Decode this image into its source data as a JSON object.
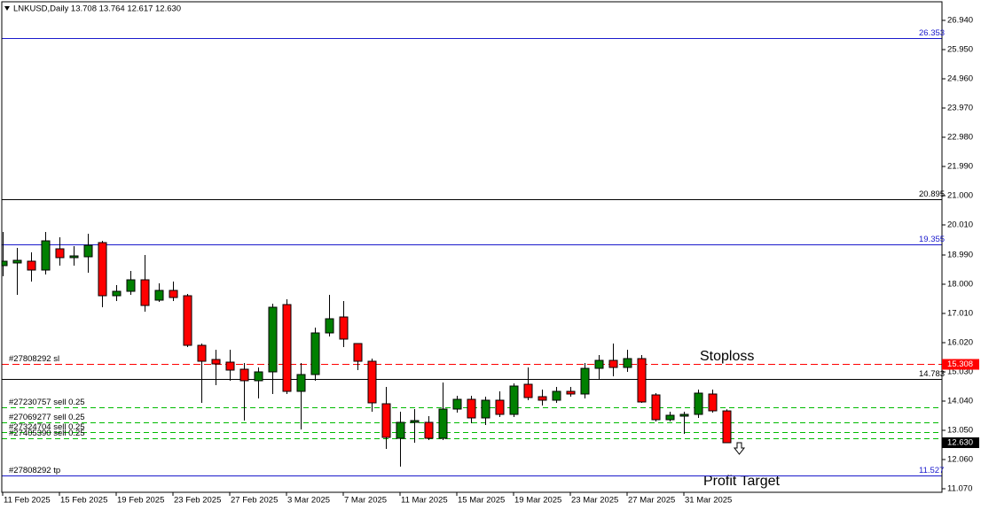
{
  "chart_data": {
    "type": "candlestick",
    "header": "LNKUSD,Daily  13.708 13.764 12.617 12.630",
    "categories": [
      "11 Feb 2025",
      null,
      null,
      null,
      "15 Feb 2025",
      null,
      null,
      null,
      "19 Feb 2025",
      null,
      null,
      null,
      "23 Feb 2025",
      null,
      null,
      null,
      "27 Feb 2025",
      null,
      null,
      null,
      "3 Mar 2025",
      null,
      null,
      null,
      "7 Mar 2025",
      null,
      null,
      null,
      "11 Mar 2025",
      null,
      null,
      null,
      "15 Mar 2025",
      null,
      null,
      null,
      "19 Mar 2025",
      null,
      null,
      null,
      "23 Mar 2025",
      null,
      null,
      null,
      "27 Mar 2025",
      null,
      null,
      null,
      "31 Mar 2025",
      null,
      null,
      null
    ],
    "open": [
      18.63,
      18.72,
      18.78,
      18.48,
      19.2,
      18.9,
      18.93,
      19.41,
      17.61,
      17.76,
      18.15,
      17.46,
      17.79,
      17.61,
      15.93,
      15.45,
      15.36,
      15.12,
      14.73,
      15.03,
      17.31,
      14.37,
      14.94,
      16.35,
      16.89,
      15.99,
      15.39,
      13.95,
      12.78,
      13.32,
      13.32,
      12.78,
      13.77,
      14.1,
      13.47,
      14.07,
      13.59,
      14.61,
      14.19,
      14.07,
      14.37,
      14.28,
      15.15,
      15.42,
      15.18,
      15.48,
      14.25,
      13.41,
      13.53,
      13.59,
      14.28,
      13.708
    ],
    "high": [
      19.77,
      19.23,
      19.08,
      19.77,
      19.59,
      19.29,
      19.71,
      19.47,
      17.97,
      18.45,
      18.99,
      18.03,
      18.09,
      17.67,
      15.99,
      15.78,
      15.78,
      15.33,
      15.18,
      17.34,
      17.49,
      15.33,
      16.53,
      17.64,
      17.43,
      15.99,
      15.48,
      14.52,
      13.68,
      13.77,
      13.53,
      14.67,
      14.22,
      14.22,
      14.19,
      14.37,
      14.64,
      15.18,
      14.43,
      14.52,
      14.52,
      15.33,
      15.6,
      15.99,
      15.78,
      15.6,
      14.31,
      13.68,
      13.68,
      14.43,
      14.43,
      13.764
    ],
    "low": [
      18.27,
      17.64,
      18.09,
      18.33,
      18.63,
      18.63,
      18.39,
      17.22,
      17.43,
      17.64,
      17.07,
      17.4,
      17.43,
      15.87,
      13.98,
      14.58,
      14.73,
      13.38,
      14.13,
      14.28,
      14.28,
      13.08,
      14.73,
      16.23,
      15.87,
      15.09,
      13.68,
      12.42,
      11.82,
      12.63,
      12.72,
      12.72,
      13.65,
      13.29,
      13.23,
      13.5,
      13.5,
      14.07,
      13.89,
      13.98,
      14.19,
      14.13,
      14.79,
      14.88,
      15.03,
      13.98,
      13.35,
      13.35,
      12.93,
      13.47,
      13.65,
      12.617
    ],
    "close": [
      18.78,
      18.81,
      18.48,
      19.47,
      18.9,
      18.96,
      19.32,
      17.61,
      17.76,
      18.15,
      17.28,
      17.79,
      17.55,
      15.93,
      15.39,
      15.3,
      15.09,
      14.73,
      15.03,
      17.22,
      14.37,
      14.94,
      16.35,
      16.83,
      16.14,
      15.39,
      13.98,
      12.81,
      13.32,
      13.38,
      12.78,
      13.77,
      14.1,
      13.47,
      14.07,
      13.59,
      14.55,
      14.16,
      14.07,
      14.37,
      14.28,
      15.15,
      15.42,
      15.18,
      15.48,
      14.01,
      13.41,
      13.56,
      13.59,
      14.31,
      13.71,
      12.63
    ],
    "up_color": "#008000",
    "down_color": "#ff0000",
    "ylim": [
      10.95,
      27.54
    ],
    "yticks": [
      {
        "value": 26.94,
        "label": "26.940"
      },
      {
        "value": 25.95,
        "label": "25.950"
      },
      {
        "value": 24.96,
        "label": "24.960"
      },
      {
        "value": 23.97,
        "label": "23.970"
      },
      {
        "value": 22.98,
        "label": "22.980"
      },
      {
        "value": 21.99,
        "label": "21.990"
      },
      {
        "value": 21.0,
        "label": "21.000"
      },
      {
        "value": 20.01,
        "label": "20.010"
      },
      {
        "value": 18.99,
        "label": "18.990"
      },
      {
        "value": 18.0,
        "label": "18.000"
      },
      {
        "value": 17.01,
        "label": "17.010"
      },
      {
        "value": 16.02,
        "label": "16.020"
      },
      {
        "value": 15.03,
        "label": "15.030"
      },
      {
        "value": 14.04,
        "label": "14.040"
      },
      {
        "value": 13.05,
        "label": "13.050"
      },
      {
        "value": 12.06,
        "label": "12.060"
      },
      {
        "value": 11.07,
        "label": "11.070"
      }
    ],
    "levels": [
      {
        "value": 26.353,
        "label": "26.353",
        "color": "#1a1acc"
      },
      {
        "value": 20.895,
        "label": "20.895",
        "color": "#000000"
      },
      {
        "value": 19.355,
        "label": "19.355",
        "color": "#1a1acc"
      },
      {
        "value": 15.308,
        "label": "15.308",
        "color": "#ff0000",
        "dashed": true,
        "boxed": true,
        "tag": "#27808292 sl"
      },
      {
        "value": 14.783,
        "label": "14.783",
        "color": "#000000"
      },
      {
        "value": 11.527,
        "label": "11.527",
        "color": "#1a1acc",
        "tag": "#27808292 tp"
      }
    ],
    "orders": [
      {
        "value": 13.83,
        "label": "#27230757 sell 0.25"
      },
      {
        "value": 13.32,
        "label": "#27069277 sell 0.25"
      },
      {
        "value": 12.99,
        "label": "#27324704 sell 0.25"
      },
      {
        "value": 12.78,
        "label": "#27405390 sell 0.25"
      }
    ],
    "order_color": "#00bb00",
    "last_price": {
      "value": 12.63,
      "label": "12.630"
    },
    "annotations": {
      "stoploss": "Stoploss",
      "profit_target": "Profit Target"
    }
  }
}
